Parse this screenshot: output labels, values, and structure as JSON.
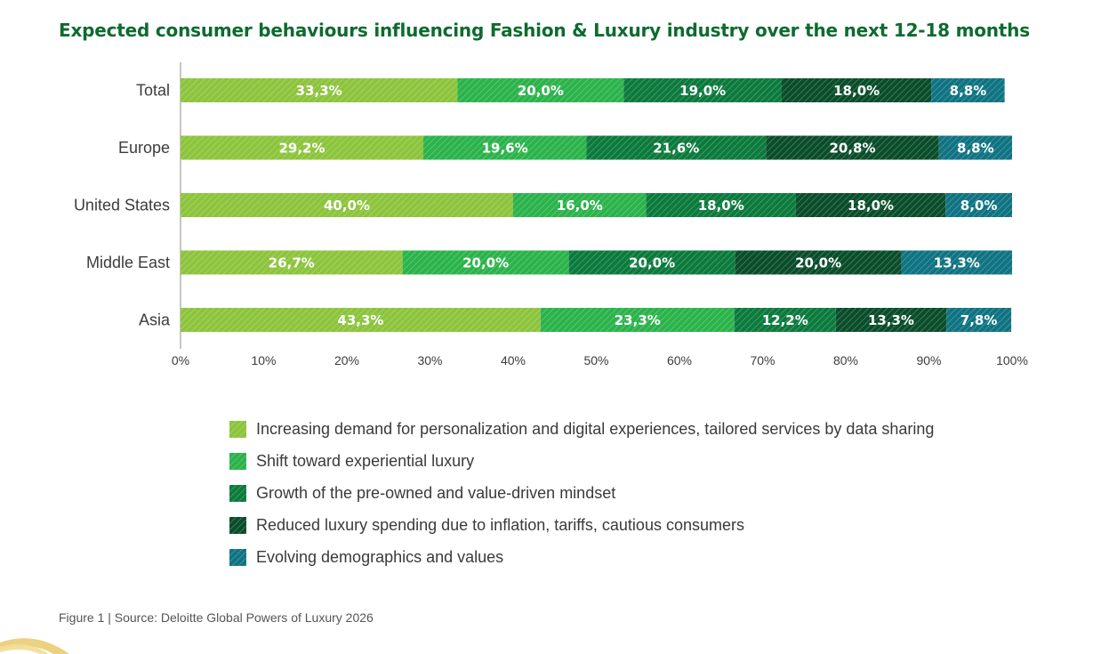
{
  "title": "Expected consumer behaviours influencing Fashion & Luxury industry over the next 12-18 months",
  "source": "Figure 1 | Source: Deloitte Global Powers of Luxury 2026",
  "colors": [
    "#8cc43c",
    "#2bb34b",
    "#0b7a3c",
    "#0a4d2a",
    "#0f7382"
  ],
  "chart_data": {
    "type": "bar",
    "orientation": "horizontal",
    "stacked": true,
    "title": "Expected consumer behaviours influencing Fashion & Luxury industry over the next 12-18 months",
    "categories": [
      "Total",
      "Europe",
      "United States",
      "Middle East",
      "Asia"
    ],
    "xlim": [
      0,
      100
    ],
    "xticks": [
      "0%",
      "10%",
      "20%",
      "30%",
      "40%",
      "50%",
      "60%",
      "70%",
      "80%",
      "90%",
      "100%"
    ],
    "legend_position": "bottom",
    "series": [
      {
        "name": "Increasing demand for personalization and digital experiences, tailored services by  data sharing",
        "values": [
          33.3,
          29.2,
          40.0,
          26.7,
          43.3
        ],
        "labels": [
          "33,3%",
          "29,2%",
          "40,0%",
          "26,7%",
          "43,3%"
        ]
      },
      {
        "name": "Shift toward experiential luxury",
        "values": [
          20.0,
          19.6,
          16.0,
          20.0,
          23.3
        ],
        "labels": [
          "20,0%",
          "19,6%",
          "16,0%",
          "20,0%",
          "23,3%"
        ]
      },
      {
        "name": "Growth of the pre-owned and value-driven mindset",
        "values": [
          19.0,
          21.6,
          18.0,
          20.0,
          12.2
        ],
        "labels": [
          "19,0%",
          "21,6%",
          "18,0%",
          "20,0%",
          "12,2%"
        ]
      },
      {
        "name": "Reduced luxury spending due to inflation, tariffs, cautious consumers",
        "values": [
          18.0,
          20.8,
          18.0,
          20.0,
          13.3
        ],
        "labels": [
          "18,0%",
          "20,8%",
          "18,0%",
          "20,0%",
          "13,3%"
        ]
      },
      {
        "name": "Evolving demographics and values",
        "values": [
          8.8,
          8.8,
          8.0,
          13.3,
          7.8
        ],
        "labels": [
          "8,8%",
          "8,8%",
          "8,0%",
          "13,3%",
          "7,8%"
        ]
      }
    ]
  }
}
